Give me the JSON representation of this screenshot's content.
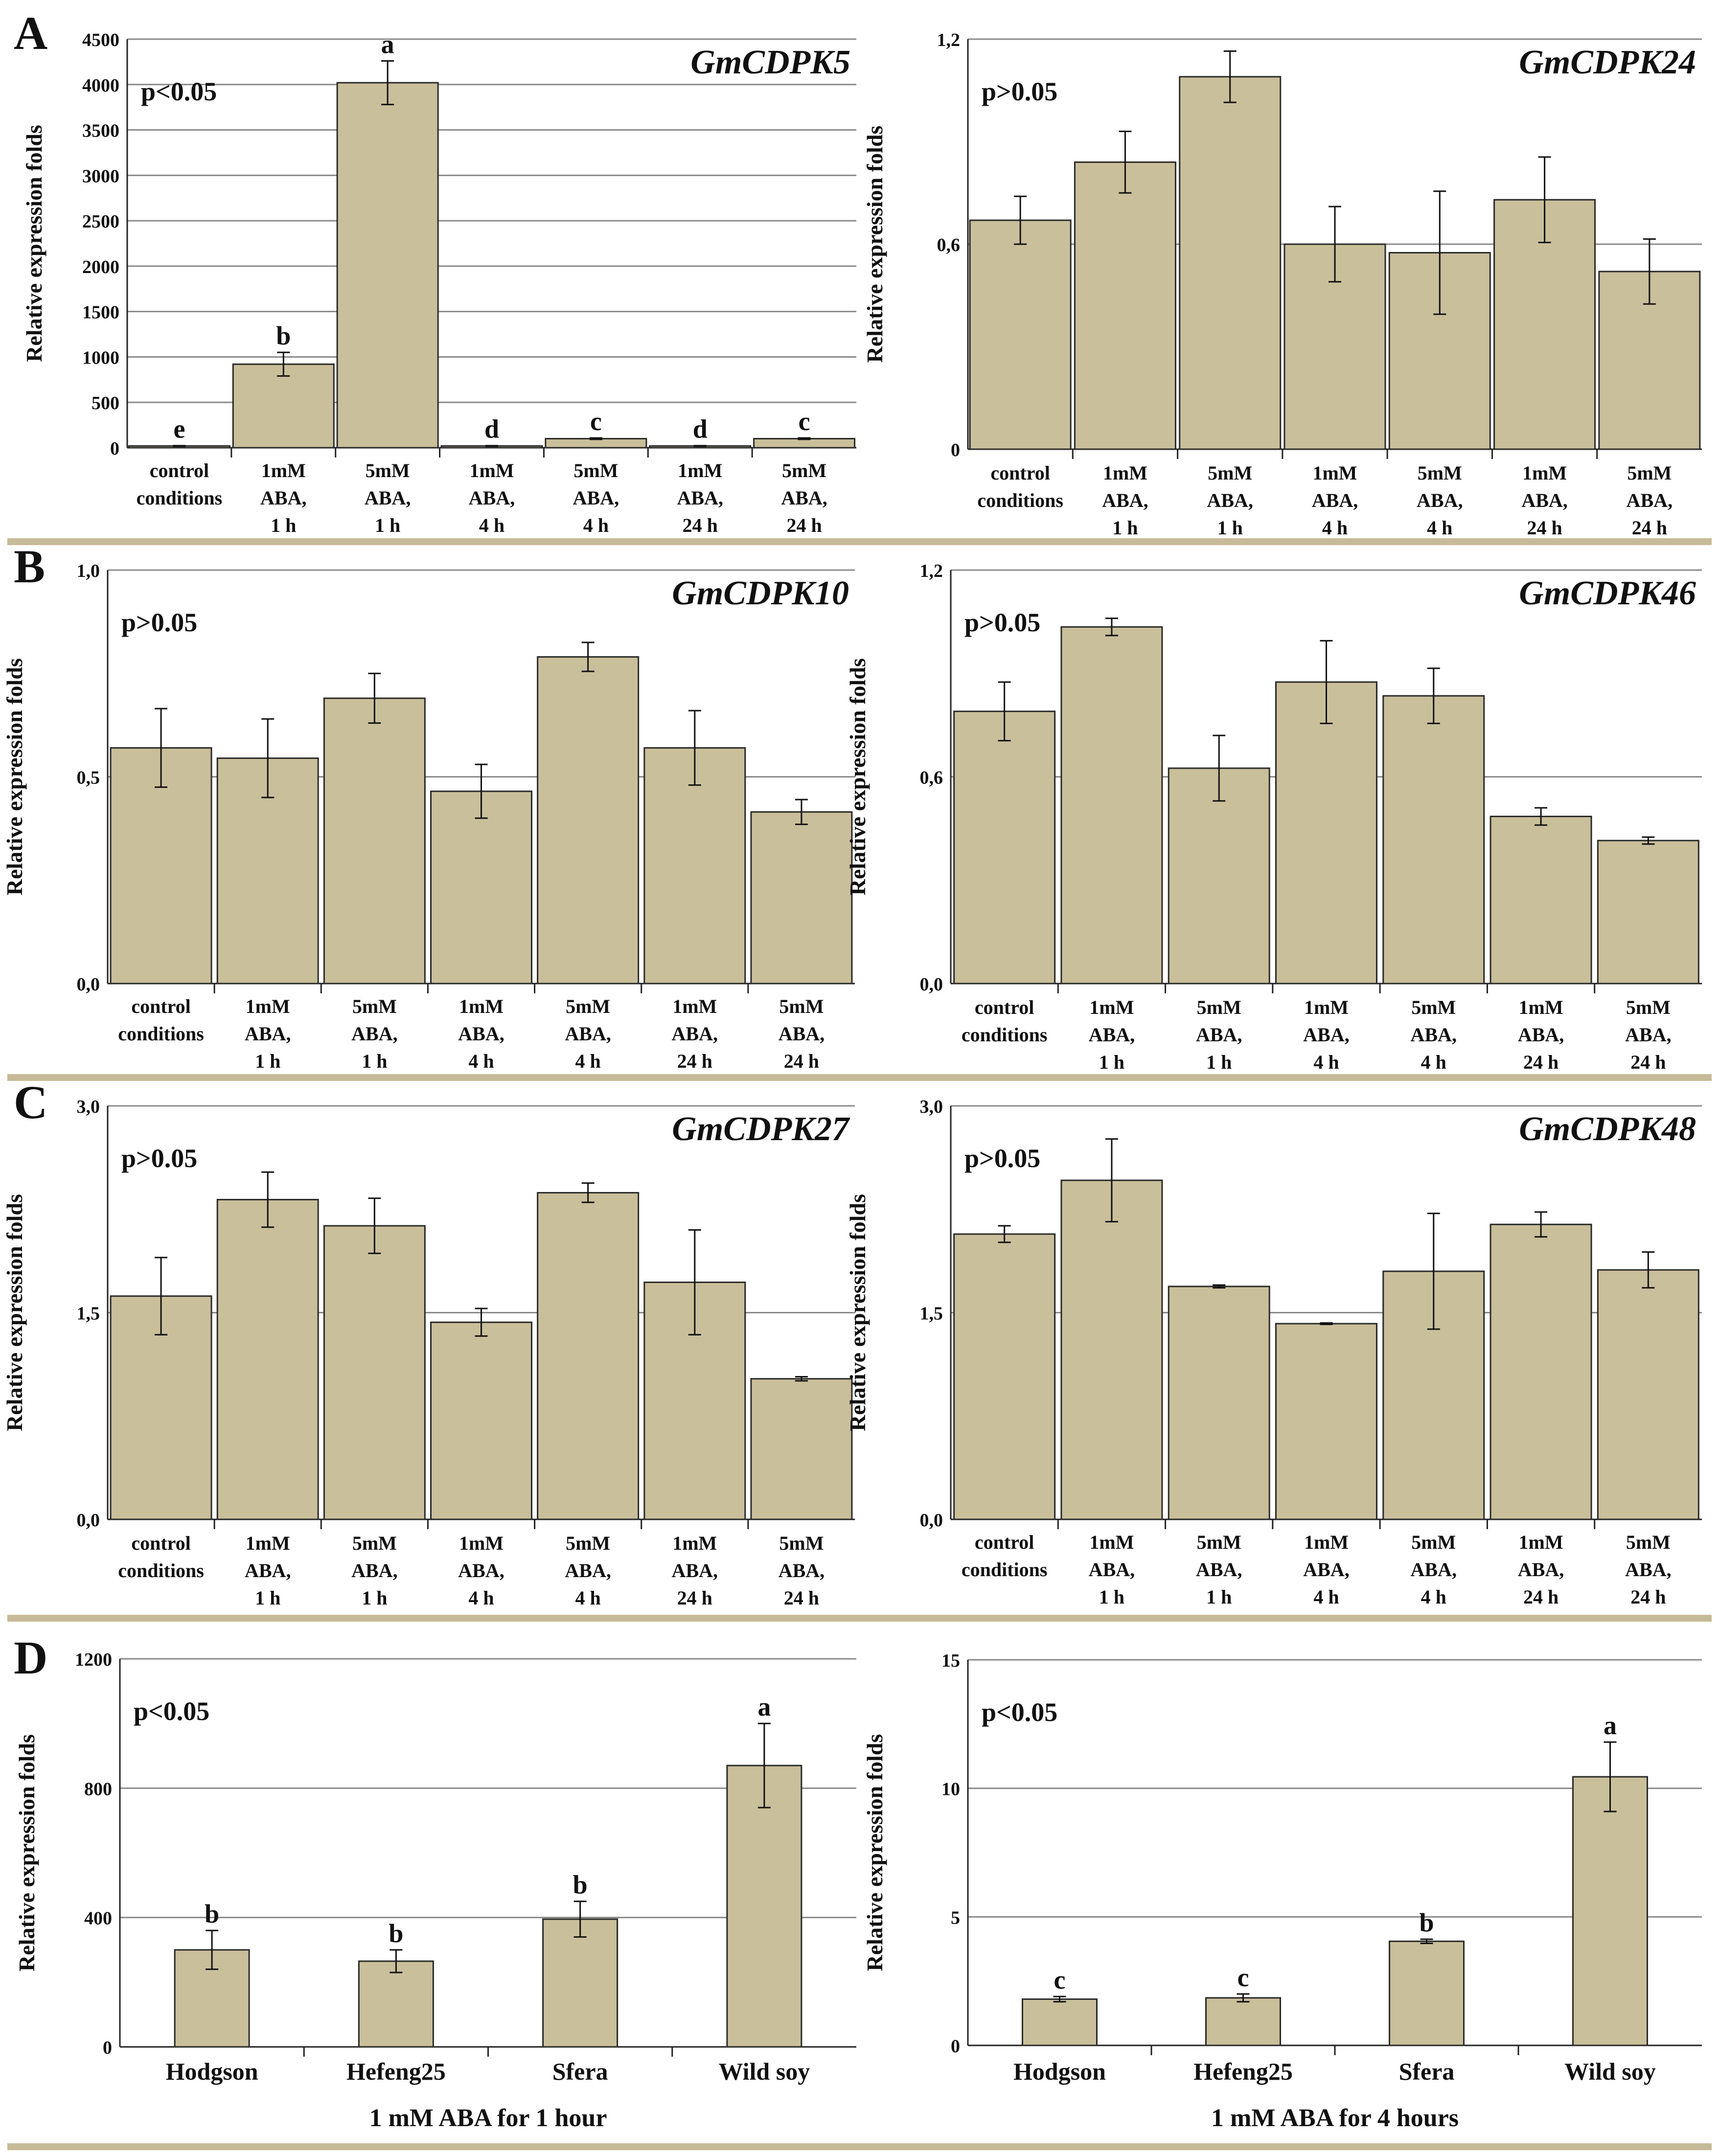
{
  "figure": {
    "colors": {
      "bar": "#C9BF9A",
      "bar_stroke": "#2a2a2a",
      "grid": "#8a8a8a",
      "separator": "#C5BB96",
      "text": "#111111"
    }
  },
  "chart_data": [
    {
      "id": "A1",
      "panel_letter": "A",
      "type": "bar",
      "title": "GmCDPK5",
      "pvalue": "p<0.05",
      "ylabel": "Relative expression folds",
      "ylim": [
        0,
        4500
      ],
      "yticks": [
        0,
        500,
        1000,
        1500,
        2000,
        2500,
        3000,
        3500,
        4000,
        4500
      ],
      "ytick_labels": [
        "0",
        "500",
        "1000",
        "1500",
        "2000",
        "2500",
        "3000",
        "3500",
        "4000",
        "4500"
      ],
      "categories": [
        [
          "control",
          "conditions"
        ],
        [
          "1mM",
          "ABA,",
          "1 h"
        ],
        [
          "5mM",
          "ABA,",
          "1 h"
        ],
        [
          "1mM",
          "ABA,",
          "4 h"
        ],
        [
          "5mM",
          "ABA,",
          "4 h"
        ],
        [
          "1mM",
          "ABA,",
          "24 h"
        ],
        [
          "5mM",
          "ABA,",
          "24 h"
        ]
      ],
      "values": [
        20,
        920,
        4020,
        20,
        100,
        20,
        100
      ],
      "errors": [
        3,
        130,
        240,
        3,
        8,
        3,
        8
      ],
      "letters": [
        "e",
        "b",
        "a",
        "d",
        "c",
        "d",
        "c"
      ],
      "xlabel": ""
    },
    {
      "id": "A2",
      "type": "bar",
      "title": "GmCDPK24",
      "pvalue": "p>0.05",
      "ylabel": "Relative expression folds",
      "ylim": [
        0,
        1.2
      ],
      "yticks": [
        0,
        0.6,
        1.2
      ],
      "ytick_labels": [
        "0",
        "0,6",
        "1,2"
      ],
      "categories": [
        [
          "control",
          "conditions"
        ],
        [
          "1mM",
          "ABA,",
          "1 h"
        ],
        [
          "5mM",
          "ABA,",
          "1 h"
        ],
        [
          "1mM",
          "ABA,",
          "4 h"
        ],
        [
          "5mM",
          "ABA,",
          "4 h"
        ],
        [
          "1mM",
          "ABA,",
          "24 h"
        ],
        [
          "5mM",
          "ABA,",
          "24 h"
        ]
      ],
      "values": [
        0.67,
        0.84,
        1.09,
        0.6,
        0.575,
        0.73,
        0.52
      ],
      "errors": [
        0.07,
        0.09,
        0.075,
        0.11,
        0.18,
        0.125,
        0.095
      ],
      "xlabel": ""
    },
    {
      "id": "B1",
      "panel_letter": "B",
      "type": "bar",
      "title": "GmCDPK10",
      "pvalue": "p>0.05",
      "ylabel": "Relative expression folds",
      "ylim": [
        0,
        1.0
      ],
      "yticks": [
        0,
        0.5,
        1.0
      ],
      "ytick_labels": [
        "0,0",
        "0,5",
        "1,0"
      ],
      "categories": [
        [
          "control",
          "conditions"
        ],
        [
          "1mM",
          "ABA,",
          "1 h"
        ],
        [
          "5mM",
          "ABA,",
          "1 h"
        ],
        [
          "1mM",
          "ABA,",
          "4 h"
        ],
        [
          "5mM",
          "ABA,",
          "4 h"
        ],
        [
          "1mM",
          "ABA,",
          "24 h"
        ],
        [
          "5mM",
          "ABA,",
          "24 h"
        ]
      ],
      "values": [
        0.57,
        0.545,
        0.69,
        0.465,
        0.79,
        0.57,
        0.415
      ],
      "errors": [
        0.095,
        0.095,
        0.06,
        0.065,
        0.035,
        0.09,
        0.03
      ],
      "xlabel": ""
    },
    {
      "id": "B2",
      "type": "bar",
      "title": "GmCDPK46",
      "pvalue": "p>0.05",
      "ylabel": "Relative expression folds",
      "ylim": [
        0,
        1.2
      ],
      "yticks": [
        0,
        0.6,
        1.2
      ],
      "ytick_labels": [
        "0,0",
        "0,6",
        "1,2"
      ],
      "categories": [
        [
          "control",
          "conditions"
        ],
        [
          "1mM",
          "ABA,",
          "1 h"
        ],
        [
          "5mM",
          "ABA,",
          "1 h"
        ],
        [
          "1mM",
          "ABA,",
          "4 h"
        ],
        [
          "5mM",
          "ABA,",
          "4 h"
        ],
        [
          "1mM",
          "ABA,",
          "24 h"
        ],
        [
          "5mM",
          "ABA,",
          "24 h"
        ]
      ],
      "values": [
        0.79,
        1.035,
        0.625,
        0.875,
        0.835,
        0.485,
        0.415
      ],
      "errors": [
        0.085,
        0.025,
        0.095,
        0.12,
        0.08,
        0.025,
        0.01
      ],
      "xlabel": ""
    },
    {
      "id": "C1",
      "panel_letter": "C",
      "type": "bar",
      "title": "GmCDPK27",
      "pvalue": "p>0.05",
      "ylabel": "Relative expression folds",
      "ylim": [
        0,
        3.0
      ],
      "yticks": [
        0,
        1.5,
        3.0
      ],
      "ytick_labels": [
        "0,0",
        "1,5",
        "3,0"
      ],
      "categories": [
        [
          "control",
          "conditions"
        ],
        [
          "1mM",
          "ABA,",
          "1 h"
        ],
        [
          "5mM",
          "ABA,",
          "1 h"
        ],
        [
          "1mM",
          "ABA,",
          "4 h"
        ],
        [
          "5mM",
          "ABA,",
          "4 h"
        ],
        [
          "1mM",
          "ABA,",
          "24 h"
        ],
        [
          "5mM",
          "ABA,",
          "24 h"
        ]
      ],
      "values": [
        1.62,
        2.32,
        2.13,
        1.43,
        2.37,
        1.72,
        1.02
      ],
      "errors": [
        0.28,
        0.2,
        0.2,
        0.1,
        0.07,
        0.38,
        0.015
      ],
      "xlabel": ""
    },
    {
      "id": "C2",
      "type": "bar",
      "title": "GmCDPK48",
      "pvalue": "p>0.05",
      "ylabel": "Relative expression folds",
      "ylim": [
        0,
        3.0
      ],
      "yticks": [
        0,
        1.5,
        3.0
      ],
      "ytick_labels": [
        "0,0",
        "1,5",
        "3,0"
      ],
      "categories": [
        [
          "control",
          "conditions"
        ],
        [
          "1mM",
          "ABA,",
          "1 h"
        ],
        [
          "5mM",
          "ABA,",
          "1 h"
        ],
        [
          "1mM",
          "ABA,",
          "4 h"
        ],
        [
          "5mM",
          "ABA,",
          "4 h"
        ],
        [
          "1mM",
          "ABA,",
          "24 h"
        ],
        [
          "5mM",
          "ABA,",
          "24 h"
        ]
      ],
      "values": [
        2.07,
        2.46,
        1.69,
        1.42,
        1.8,
        2.14,
        1.81
      ],
      "errors": [
        0.06,
        0.3,
        0.01,
        0.005,
        0.42,
        0.09,
        0.13
      ],
      "xlabel": ""
    },
    {
      "id": "D1",
      "panel_letter": "D",
      "type": "bar",
      "title": "",
      "pvalue": "p<0.05",
      "ylabel": "Relative expression folds",
      "ylim": [
        0,
        1200
      ],
      "yticks": [
        0,
        400,
        800,
        1200
      ],
      "ytick_labels": [
        "0",
        "400",
        "800",
        "1200"
      ],
      "categories": [
        [
          "Hodgson"
        ],
        [
          "Hefeng25"
        ],
        [
          "Sfera"
        ],
        [
          "Wild soy"
        ]
      ],
      "values": [
        300,
        265,
        395,
        870
      ],
      "errors": [
        60,
        35,
        55,
        130
      ],
      "letters": [
        "b",
        "b",
        "b",
        "a"
      ],
      "xlabel": "1 mM ABA for 1 hour"
    },
    {
      "id": "D2",
      "type": "bar",
      "title": "",
      "pvalue": "p<0.05",
      "ylabel": "Relative expression folds",
      "ylim": [
        0,
        15
      ],
      "yticks": [
        0,
        5,
        10,
        15
      ],
      "ytick_labels": [
        "0",
        "5",
        "10",
        "15"
      ],
      "categories": [
        [
          "Hodgson"
        ],
        [
          "Hefeng25"
        ],
        [
          "Sfera"
        ],
        [
          "Wild soy"
        ]
      ],
      "values": [
        1.8,
        1.85,
        4.05,
        10.45
      ],
      "errors": [
        0.1,
        0.15,
        0.08,
        1.35
      ],
      "letters": [
        "c",
        "c",
        "b",
        "a"
      ],
      "xlabel": "1 mM ABA for 4 hours"
    }
  ]
}
